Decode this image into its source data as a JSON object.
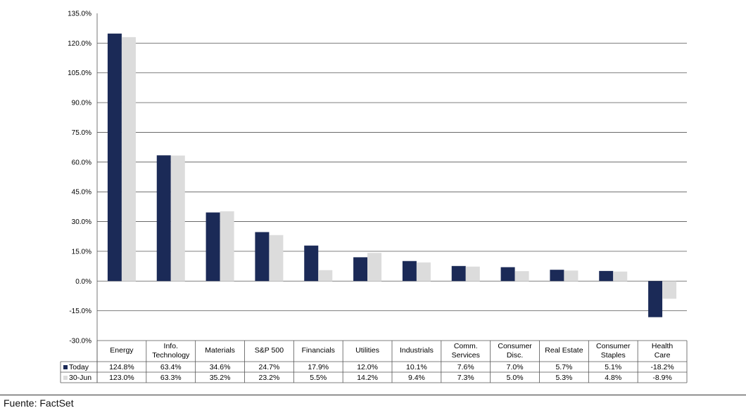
{
  "chart_data": {
    "type": "bar",
    "categories": [
      [
        "Energy"
      ],
      [
        "Info.",
        "Technology"
      ],
      [
        "Materials"
      ],
      [
        "S&P 500"
      ],
      [
        "Financials"
      ],
      [
        "Utilities"
      ],
      [
        "Industrials"
      ],
      [
        "Comm.",
        "Services"
      ],
      [
        "Consumer",
        "Disc."
      ],
      [
        "Real Estate"
      ],
      [
        "Consumer",
        "Staples"
      ],
      [
        "Health",
        "Care"
      ]
    ],
    "series": [
      {
        "name": "Today",
        "color": "#1b2a57",
        "values": [
          124.8,
          63.4,
          34.6,
          24.7,
          17.9,
          12.0,
          10.1,
          7.6,
          7.0,
          5.7,
          5.1,
          -18.2
        ],
        "labels": [
          "124.8%",
          "63.4%",
          "34.6%",
          "24.7%",
          "17.9%",
          "12.0%",
          "10.1%",
          "7.6%",
          "7.0%",
          "5.7%",
          "5.1%",
          "-18.2%"
        ]
      },
      {
        "name": "30-Jun",
        "color": "#dcdcdc",
        "values": [
          123.0,
          63.3,
          35.2,
          23.2,
          5.5,
          14.2,
          9.4,
          7.3,
          5.0,
          5.3,
          4.8,
          -8.9
        ],
        "labels": [
          "123.0%",
          "63.3%",
          "35.2%",
          "23.2%",
          "5.5%",
          "14.2%",
          "9.4%",
          "7.3%",
          "5.0%",
          "5.3%",
          "4.8%",
          "-8.9%"
        ]
      }
    ],
    "y_ticks": [
      "135.0%",
      "120.0%",
      "105.0%",
      "90.0%",
      "75.0%",
      "60.0%",
      "45.0%",
      "30.0%",
      "15.0%",
      "0.0%",
      "-15.0%",
      "-30.0%"
    ],
    "ylim": [
      -30,
      135
    ],
    "grid": true,
    "legend": "data-table"
  },
  "source": "Fuente: FactSet"
}
